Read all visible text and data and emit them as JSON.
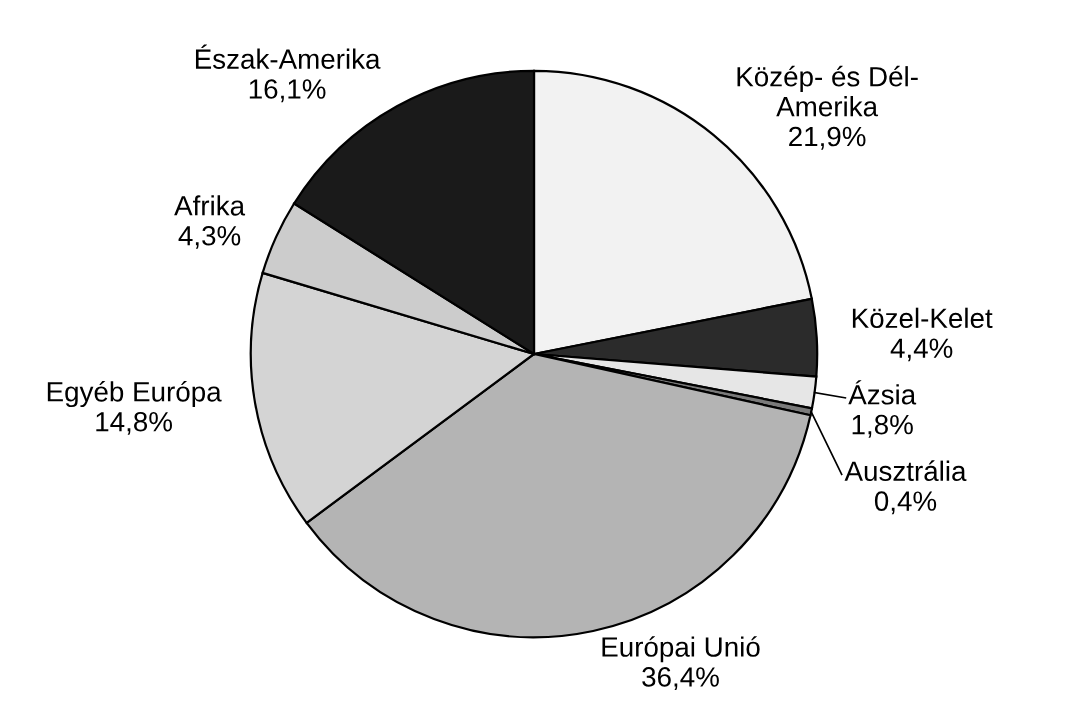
{
  "chart_data": {
    "type": "pie",
    "categories": [
      "Közép- és Dél-\nAmerika",
      "Közel-Kelet",
      "Ázsia",
      "Ausztrália",
      "Európai Unió",
      "Egyéb Európa",
      "Afrika",
      "Észak-Amerika"
    ],
    "values": [
      21.9,
      4.4,
      1.8,
      0.4,
      36.4,
      14.8,
      4.3,
      16.1
    ],
    "value_labels": [
      "21,9%",
      "4,4%",
      "1,8%",
      "0,4%",
      "36,4%",
      "14,8%",
      "4,3%",
      "16,1%"
    ],
    "colors": [
      "#f2f2f2",
      "#2b2b2b",
      "#e6e6e6",
      "#7a7a7a",
      "#b4b4b4",
      "#d4d4d4",
      "#cccccc",
      "#1a1a1a"
    ]
  }
}
